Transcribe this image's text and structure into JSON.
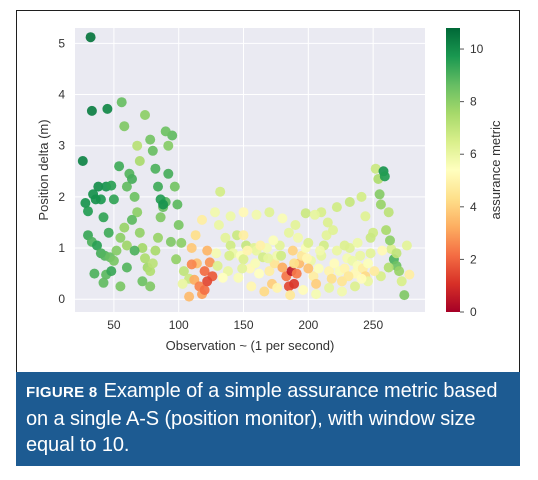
{
  "caption": {
    "label": "FIGURE 8",
    "text": "Example of a simple assurance metric based on a single A-S (position monitor), with window size equal to 10."
  },
  "chart_data": {
    "type": "scatter",
    "title": "",
    "xlabel": "Observation ~ (1 per second)",
    "ylabel": "Position delta (m)",
    "xlim": [
      20,
      290
    ],
    "ylim": [
      -0.25,
      5.3
    ],
    "xticks": [
      50,
      100,
      150,
      200,
      250
    ],
    "yticks": [
      0,
      1,
      2,
      3,
      4,
      5
    ],
    "grid": true,
    "colorbar": {
      "label": "assurance metric",
      "range": [
        0,
        10.8
      ],
      "ticks": [
        0,
        2,
        4,
        6,
        8,
        10
      ],
      "colormap": [
        "#a50026",
        "#d73027",
        "#f46d43",
        "#fdae61",
        "#fee08b",
        "#ffffbf",
        "#d9ef8b",
        "#a6d96a",
        "#66bd63",
        "#1a9850",
        "#006837"
      ]
    },
    "points": [
      [
        32,
        5.12,
        10.5
      ],
      [
        26,
        2.7,
        10.2
      ],
      [
        33,
        3.68,
        10.3
      ],
      [
        45,
        3.72,
        10.1
      ],
      [
        28,
        1.88,
        9.8
      ],
      [
        30,
        1.72,
        9.6
      ],
      [
        34,
        2.05,
        9.9
      ],
      [
        38,
        2.2,
        10.0
      ],
      [
        40,
        1.95,
        9.7
      ],
      [
        44,
        2.2,
        9.8
      ],
      [
        48,
        2.22,
        9.5
      ],
      [
        36,
        1.95,
        9.9
      ],
      [
        42,
        1.6,
        9.4
      ],
      [
        46,
        1.3,
        9.2
      ],
      [
        30,
        1.25,
        9.3
      ],
      [
        33,
        1.12,
        9.0
      ],
      [
        37,
        1.05,
        9.5
      ],
      [
        40,
        0.9,
        9.1
      ],
      [
        43,
        0.85,
        8.9
      ],
      [
        47,
        0.82,
        8.6
      ],
      [
        50,
        0.75,
        8.3
      ],
      [
        35,
        0.5,
        9.0
      ],
      [
        44,
        0.48,
        8.8
      ],
      [
        52,
        0.95,
        8.1
      ],
      [
        55,
        1.2,
        8.0
      ],
      [
        58,
        1.4,
        7.8
      ],
      [
        60,
        1.05,
        7.7
      ],
      [
        50,
        1.95,
        9.4
      ],
      [
        54,
        2.6,
        9.2
      ],
      [
        56,
        3.85,
        8.6
      ],
      [
        58,
        3.38,
        8.2
      ],
      [
        60,
        2.2,
        8.7
      ],
      [
        62,
        2.45,
        8.9
      ],
      [
        64,
        2.35,
        9.1
      ],
      [
        66,
        2.0,
        8.5
      ],
      [
        68,
        1.7,
        8.0
      ],
      [
        70,
        1.3,
        7.9
      ],
      [
        72,
        1.0,
        7.6
      ],
      [
        74,
        0.8,
        7.4
      ],
      [
        76,
        0.62,
        7.6
      ],
      [
        78,
        0.55,
        7.3
      ],
      [
        80,
        0.7,
        7.1
      ],
      [
        82,
        0.95,
        7.5
      ],
      [
        84,
        1.2,
        7.8
      ],
      [
        86,
        1.6,
        8.2
      ],
      [
        88,
        1.8,
        8.6
      ],
      [
        90,
        1.9,
        8.9
      ],
      [
        92,
        2.45,
        9.1
      ],
      [
        95,
        3.2,
        8.7
      ],
      [
        97,
        2.2,
        8.4
      ],
      [
        99,
        1.85,
        8.8
      ],
      [
        100,
        1.45,
        8.3
      ],
      [
        102,
        1.1,
        8.0
      ],
      [
        74,
        3.6,
        8.0
      ],
      [
        78,
        3.12,
        8.4
      ],
      [
        80,
        2.9,
        8.6
      ],
      [
        82,
        2.55,
        9.0
      ],
      [
        84,
        2.2,
        9.2
      ],
      [
        86,
        1.95,
        9.6
      ],
      [
        88,
        1.85,
        9.8
      ],
      [
        90,
        3.28,
        8.5
      ],
      [
        92,
        3.0,
        8.1
      ],
      [
        70,
        2.7,
        7.5
      ],
      [
        68,
        3.0,
        7.2
      ],
      [
        64,
        1.55,
        8.8
      ],
      [
        66,
        0.95,
        9.0
      ],
      [
        72,
        0.35,
        8.5
      ],
      [
        78,
        0.25,
        8.2
      ],
      [
        55,
        0.25,
        8.3
      ],
      [
        42,
        0.32,
        8.7
      ],
      [
        48,
        0.55,
        9.3
      ],
      [
        60,
        0.62,
        8.9
      ],
      [
        94,
        1.12,
        8.2
      ],
      [
        98,
        0.78,
        7.9
      ],
      [
        104,
        0.55,
        7.0
      ],
      [
        108,
        0.4,
        6.8
      ],
      [
        103,
        0.3,
        6.0
      ],
      [
        112,
        0.38,
        3.2
      ],
      [
        116,
        0.25,
        2.5
      ],
      [
        118,
        0.1,
        3.0
      ],
      [
        120,
        0.55,
        2.1
      ],
      [
        114,
        0.7,
        3.6
      ],
      [
        122,
        0.95,
        3.4
      ],
      [
        124,
        0.72,
        2.8
      ],
      [
        110,
        1.0,
        3.8
      ],
      [
        113,
        1.25,
        4.3
      ],
      [
        118,
        1.55,
        4.8
      ],
      [
        108,
        0.05,
        3.5
      ],
      [
        126,
        0.45,
        1.8
      ],
      [
        120,
        0.18,
        2.2
      ],
      [
        122,
        0.35,
        1.5
      ],
      [
        110,
        0.68,
        2.6
      ],
      [
        128,
        1.7,
        5.8
      ],
      [
        132,
        2.1,
        6.6
      ],
      [
        136,
        1.2,
        6.2
      ],
      [
        140,
        1.05,
        6.7
      ],
      [
        142,
        0.9,
        5.9
      ],
      [
        145,
        1.25,
        6.8
      ],
      [
        148,
        0.85,
        5.5
      ],
      [
        150,
        0.78,
        6.4
      ],
      [
        152,
        1.05,
        6.9
      ],
      [
        155,
        0.6,
        5.2
      ],
      [
        158,
        1.0,
        6.3
      ],
      [
        160,
        0.95,
        6.0
      ],
      [
        162,
        0.5,
        5.4
      ],
      [
        165,
        0.82,
        6.6
      ],
      [
        168,
        1.0,
        5.7
      ],
      [
        170,
        0.55,
        4.8
      ],
      [
        172,
        0.3,
        3.9
      ],
      [
        174,
        0.7,
        4.5
      ],
      [
        176,
        0.85,
        5.8
      ],
      [
        178,
        1.05,
        6.2
      ],
      [
        180,
        0.62,
        3.2
      ],
      [
        183,
        0.45,
        2.3
      ],
      [
        185,
        0.25,
        1.5
      ],
      [
        187,
        0.55,
        0.6
      ],
      [
        189,
        0.3,
        1.2
      ],
      [
        191,
        0.5,
        2.4
      ],
      [
        193,
        0.7,
        3.5
      ],
      [
        195,
        0.85,
        4.6
      ],
      [
        198,
        1.0,
        5.6
      ],
      [
        200,
        1.1,
        6.4
      ],
      [
        202,
        0.75,
        5.9
      ],
      [
        204,
        0.45,
        4.8
      ],
      [
        206,
        0.3,
        3.9
      ],
      [
        208,
        0.6,
        5.5
      ],
      [
        210,
        0.85,
        6.1
      ],
      [
        212,
        1.05,
        6.6
      ],
      [
        214,
        1.25,
        6.2
      ],
      [
        216,
        0.55,
        5.0
      ],
      [
        218,
        0.4,
        4.3
      ],
      [
        220,
        0.7,
        5.3
      ],
      [
        222,
        0.95,
        6.0
      ],
      [
        224,
        0.55,
        5.6
      ],
      [
        226,
        0.35,
        4.5
      ],
      [
        228,
        0.6,
        5.0
      ],
      [
        230,
        0.8,
        5.7
      ],
      [
        232,
        1.0,
        6.3
      ],
      [
        234,
        0.75,
        5.9
      ],
      [
        236,
        0.5,
        5.2
      ],
      [
        238,
        0.65,
        5.6
      ],
      [
        240,
        0.85,
        6.0
      ],
      [
        242,
        0.6,
        4.8
      ],
      [
        244,
        0.45,
        4.2
      ],
      [
        246,
        0.7,
        5.5
      ],
      [
        248,
        0.9,
        6.2
      ],
      [
        250,
        1.3,
        6.7
      ],
      [
        252,
        2.55,
        6.8
      ],
      [
        254,
        2.35,
        7.4
      ],
      [
        255,
        2.05,
        8.1
      ],
      [
        256,
        1.85,
        7.8
      ],
      [
        258,
        2.5,
        9.8
      ],
      [
        259,
        2.4,
        9.6
      ],
      [
        262,
        1.7,
        7.1
      ],
      [
        264,
        0.98,
        6.4
      ],
      [
        266,
        0.78,
        9.0
      ],
      [
        268,
        0.65,
        8.5
      ],
      [
        270,
        0.55,
        7.8
      ],
      [
        272,
        0.35,
        6.5
      ],
      [
        274,
        0.08,
        8.2
      ],
      [
        276,
        1.05,
        6.2
      ],
      [
        278,
        0.48,
        4.8
      ],
      [
        140,
        1.62,
        5.9
      ],
      [
        150,
        1.7,
        5.2
      ],
      [
        160,
        1.65,
        5.8
      ],
      [
        170,
        1.7,
        6.3
      ],
      [
        180,
        1.58,
        5.6
      ],
      [
        190,
        1.45,
        6.2
      ],
      [
        198,
        1.68,
        6.8
      ],
      [
        210,
        1.7,
        6.5
      ],
      [
        222,
        1.8,
        6.7
      ],
      [
        232,
        1.9,
        6.9
      ],
      [
        244,
        1.62,
        6.3
      ],
      [
        150,
        1.25,
        4.8
      ],
      [
        138,
        0.55,
        6.0
      ],
      [
        134,
        0.42,
        5.4
      ],
      [
        130,
        0.65,
        6.4
      ],
      [
        146,
        0.42,
        5.6
      ],
      [
        156,
        0.25,
        5.1
      ],
      [
        166,
        0.15,
        4.2
      ],
      [
        176,
        0.22,
        5.0
      ],
      [
        186,
        0.08,
        4.6
      ],
      [
        196,
        0.18,
        5.3
      ],
      [
        206,
        0.1,
        5.7
      ],
      [
        216,
        0.22,
        6.1
      ],
      [
        226,
        0.15,
        5.8
      ],
      [
        236,
        0.25,
        6.4
      ],
      [
        246,
        0.35,
        6.0
      ],
      [
        256,
        0.45,
        6.5
      ],
      [
        262,
        0.62,
        7.3
      ],
      [
        268,
        0.9,
        7.0
      ],
      [
        153,
        0.95,
        5.0
      ],
      [
        163,
        1.05,
        4.9
      ],
      [
        173,
        1.15,
        5.5
      ],
      [
        188,
        0.95,
        4.0
      ],
      [
        200,
        0.6,
        3.6
      ],
      [
        192,
        1.2,
        5.8
      ],
      [
        185,
        1.3,
        6.1
      ],
      [
        228,
        1.05,
        6.4
      ],
      [
        238,
        1.1,
        5.9
      ],
      [
        248,
        1.2,
        6.8
      ],
      [
        260,
        1.35,
        7.5
      ],
      [
        257,
        0.95,
        5.2
      ],
      [
        251,
        0.55,
        4.7
      ],
      [
        241,
        0.4,
        5.3
      ],
      [
        231,
        0.45,
        4.6
      ],
      [
        219,
        1.35,
        6.3
      ],
      [
        209,
        0.95,
        5.8
      ],
      [
        199,
        0.8,
        5.1
      ],
      [
        189,
        0.7,
        4.3
      ],
      [
        179,
        0.85,
        6.7
      ],
      [
        169,
        0.8,
        6.1
      ],
      [
        159,
        0.7,
        5.6
      ],
      [
        149,
        0.6,
        6.2
      ],
      [
        139,
        0.85,
        6.5
      ],
      [
        129,
        0.9,
        5.7
      ],
      [
        131,
        1.45,
        6.0
      ],
      [
        205,
        1.65,
        6.1
      ],
      [
        215,
        1.5,
        6.4
      ],
      [
        263,
        1.15,
        8.0
      ],
      [
        241,
        2.0,
        6.6
      ]
    ]
  }
}
